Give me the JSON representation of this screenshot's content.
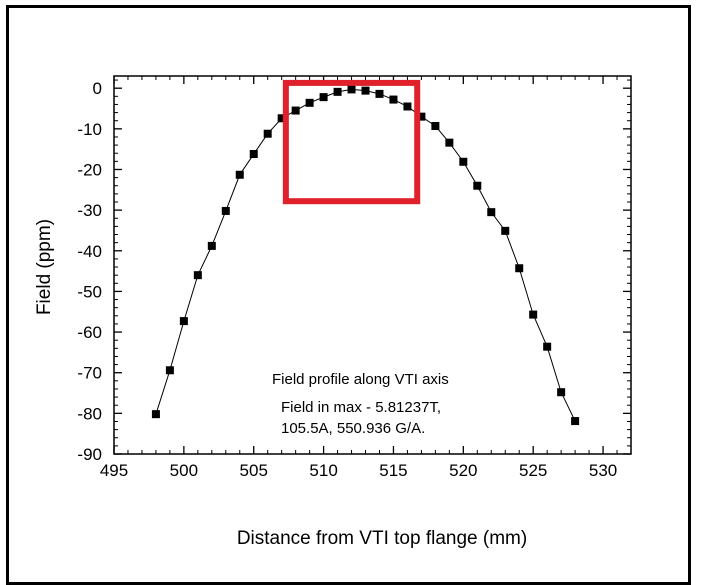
{
  "chart_data": {
    "type": "scatter",
    "title": "",
    "xlabel": "Distance from VTI top flange (mm)",
    "ylabel": "Field (ppm)",
    "xlim": [
      495,
      532
    ],
    "ylim": [
      -90,
      3
    ],
    "x_ticks": [
      495,
      500,
      505,
      510,
      515,
      520,
      525,
      530
    ],
    "y_ticks": [
      0,
      -10,
      -20,
      -30,
      -40,
      -50,
      -60,
      -70,
      -80,
      -90
    ],
    "grid": false,
    "marker": "square",
    "connected": true,
    "series": [
      {
        "x": [
          498,
          499,
          500,
          501,
          502,
          503,
          504,
          505,
          506,
          507,
          508,
          509,
          510,
          511,
          512,
          513,
          514,
          515,
          516,
          517,
          518,
          519,
          520,
          521,
          522,
          523,
          524,
          525,
          526,
          527,
          528
        ],
        "y": [
          -80.2,
          -69.4,
          -57.3,
          -46.0,
          -38.8,
          -30.2,
          -21.3,
          -16.2,
          -11.2,
          -7.4,
          -5.5,
          -3.6,
          -2.2,
          -0.9,
          -0.3,
          -0.6,
          -1.4,
          -2.8,
          -4.5,
          -7.0,
          -9.3,
          -13.4,
          -18.1,
          -24.0,
          -30.5,
          -35.1,
          -44.3,
          -55.7,
          -63.6,
          -74.8,
          -81.9
        ]
      }
    ],
    "highlight_box": {
      "x": [
        507.3,
        516.7
      ],
      "y": [
        -27.8,
        1.3
      ],
      "color": "#e0202a"
    },
    "annotations": [
      "Field profile along VTI axis",
      "Field in max - 5.81237T,",
      "105.5A, 550.936 G/A."
    ]
  }
}
